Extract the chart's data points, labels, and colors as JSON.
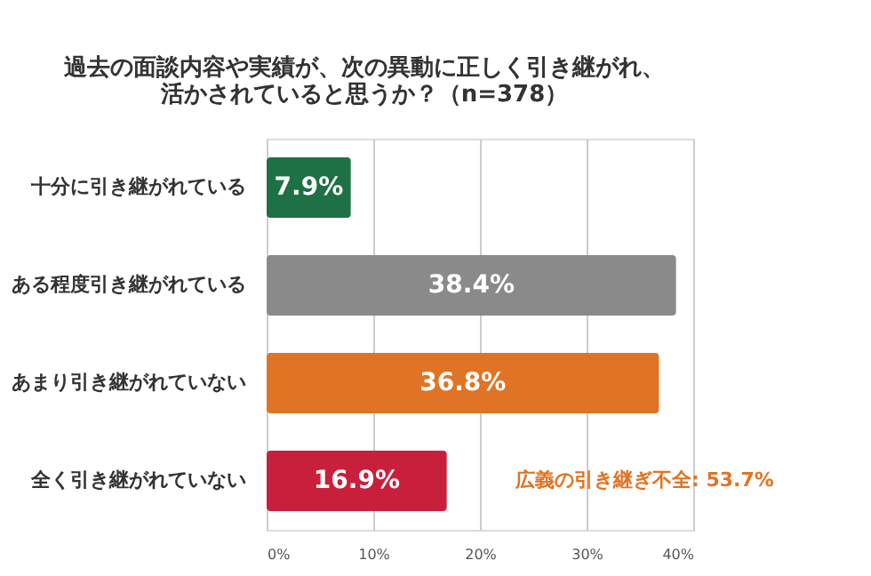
{
  "chart_data": {
    "type": "bar",
    "orientation": "horizontal",
    "title": "過去の面談内容や実績が、次の異動に正しく引き継がれ、活かされていると思うか？（n=378）",
    "categories": [
      "十分に引き継がれている",
      "ある程度引き継がれている",
      "あまり引き継がれていない",
      "全く引き継がれていない"
    ],
    "values": [
      7.9,
      38.4,
      36.8,
      16.9
    ],
    "colors": [
      "#1e7145",
      "#8a8a8a",
      "#e07424",
      "#c8203c"
    ],
    "value_labels": [
      "7.9%",
      "38.4%",
      "36.8%",
      "16.9%"
    ],
    "xlim": [
      0,
      40
    ],
    "xticks": [
      {
        "value": 0,
        "label": "0%"
      },
      {
        "value": 10,
        "label": "10%"
      },
      {
        "value": 20,
        "label": "20%"
      },
      {
        "value": 30,
        "label": "30%"
      },
      {
        "value": 40,
        "label": "40%"
      }
    ],
    "annotations": [
      "広義の引き継ぎ不全: 53.7%"
    ],
    "grid": "x"
  }
}
